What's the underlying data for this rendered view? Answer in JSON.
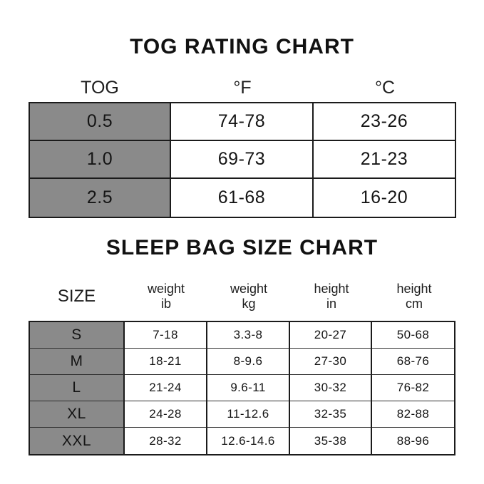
{
  "colors": {
    "row_header_bg": "#8a8a8a",
    "border": "#1b1b1b",
    "text": "#141414",
    "background": "#ffffff"
  },
  "size_chart_headers": [
    {
      "line1": "SIZE",
      "line2": ""
    },
    {
      "line1": "weight",
      "line2": "ib"
    },
    {
      "line1": "weight",
      "line2": "kg"
    },
    {
      "line1": "height",
      "line2": "in"
    },
    {
      "line1": "height",
      "line2": "cm"
    }
  ],
  "chart_data": [
    {
      "type": "table",
      "title": "TOG RATING CHART",
      "columns": [
        "TOG",
        "°F",
        "°C"
      ],
      "rows": [
        [
          "0.5",
          "74-78",
          "23-26"
        ],
        [
          "1.0",
          "69-73",
          "21-23"
        ],
        [
          "2.5",
          "61-68",
          "16-20"
        ]
      ],
      "layout_hints": {
        "first_column_bg": "#8a8a8a",
        "grid": "on"
      }
    },
    {
      "type": "table",
      "title": "SLEEP BAG SIZE CHART",
      "columns": [
        "SIZE",
        "weight ib",
        "weight kg",
        "height in",
        "height cm"
      ],
      "rows": [
        [
          "S",
          "7-18",
          "3.3-8",
          "20-27",
          "50-68"
        ],
        [
          "M",
          "18-21",
          "8-9.6",
          "27-30",
          "68-76"
        ],
        [
          "L",
          "21-24",
          "9.6-11",
          "30-32",
          "76-82"
        ],
        [
          "XL",
          "24-28",
          "11-12.6",
          "32-35",
          "82-88"
        ],
        [
          "XXL",
          "28-32",
          "12.6-14.6",
          "35-38",
          "88-96"
        ]
      ],
      "layout_hints": {
        "first_column_bg": "#8a8a8a",
        "grid": "on"
      }
    }
  ]
}
